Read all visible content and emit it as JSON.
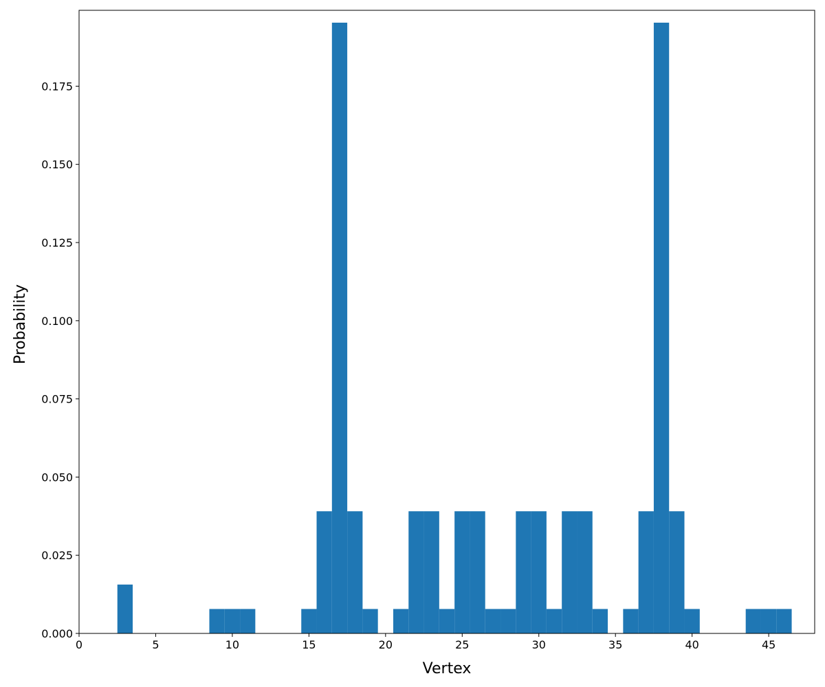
{
  "chart_data": {
    "type": "bar",
    "title": "",
    "xlabel": "Vertex",
    "ylabel": "Probability",
    "xlim": [
      0,
      48
    ],
    "ylim": [
      0,
      0.1953125
    ],
    "grid": false,
    "bar_color": "#1f77b4",
    "bar_width": 1,
    "x": [
      0,
      1,
      2,
      3,
      4,
      5,
      6,
      7,
      8,
      9,
      10,
      11,
      12,
      13,
      14,
      15,
      16,
      17,
      18,
      19,
      20,
      21,
      22,
      23,
      24,
      25,
      26,
      27,
      28,
      29,
      30,
      31,
      32,
      33,
      34,
      35,
      36,
      37,
      38,
      39,
      40,
      41,
      42,
      43,
      44,
      45,
      46,
      47
    ],
    "values": [
      0,
      0,
      0,
      0.015625,
      0,
      0,
      0,
      0,
      0,
      0.0078125,
      0.0078125,
      0.0078125,
      0,
      0,
      0,
      0.0078125,
      0.0390625,
      0.1953125,
      0.0390625,
      0.0078125,
      0,
      0.0078125,
      0.0390625,
      0.0390625,
      0.0078125,
      0.0390625,
      0.0390625,
      0.0078125,
      0.0078125,
      0.0390625,
      0.0390625,
      0.0078125,
      0.0390625,
      0.0390625,
      0.0078125,
      0,
      0.0078125,
      0.0390625,
      0.1953125,
      0.0390625,
      0.0078125,
      0,
      0,
      0,
      0.0078125,
      0.0078125,
      0.0078125,
      0
    ],
    "xticks": [
      0,
      5,
      10,
      15,
      20,
      25,
      30,
      35,
      40,
      45
    ],
    "xtick_labels": [
      "0",
      "5",
      "10",
      "15",
      "20",
      "25",
      "30",
      "35",
      "40",
      "45"
    ],
    "yticks": [
      0,
      0.025,
      0.05,
      0.075,
      0.1,
      0.125,
      0.15,
      0.175
    ],
    "ytick_labels": [
      "0.000",
      "0.025",
      "0.050",
      "0.075",
      "0.100",
      "0.125",
      "0.150",
      "0.175"
    ]
  }
}
